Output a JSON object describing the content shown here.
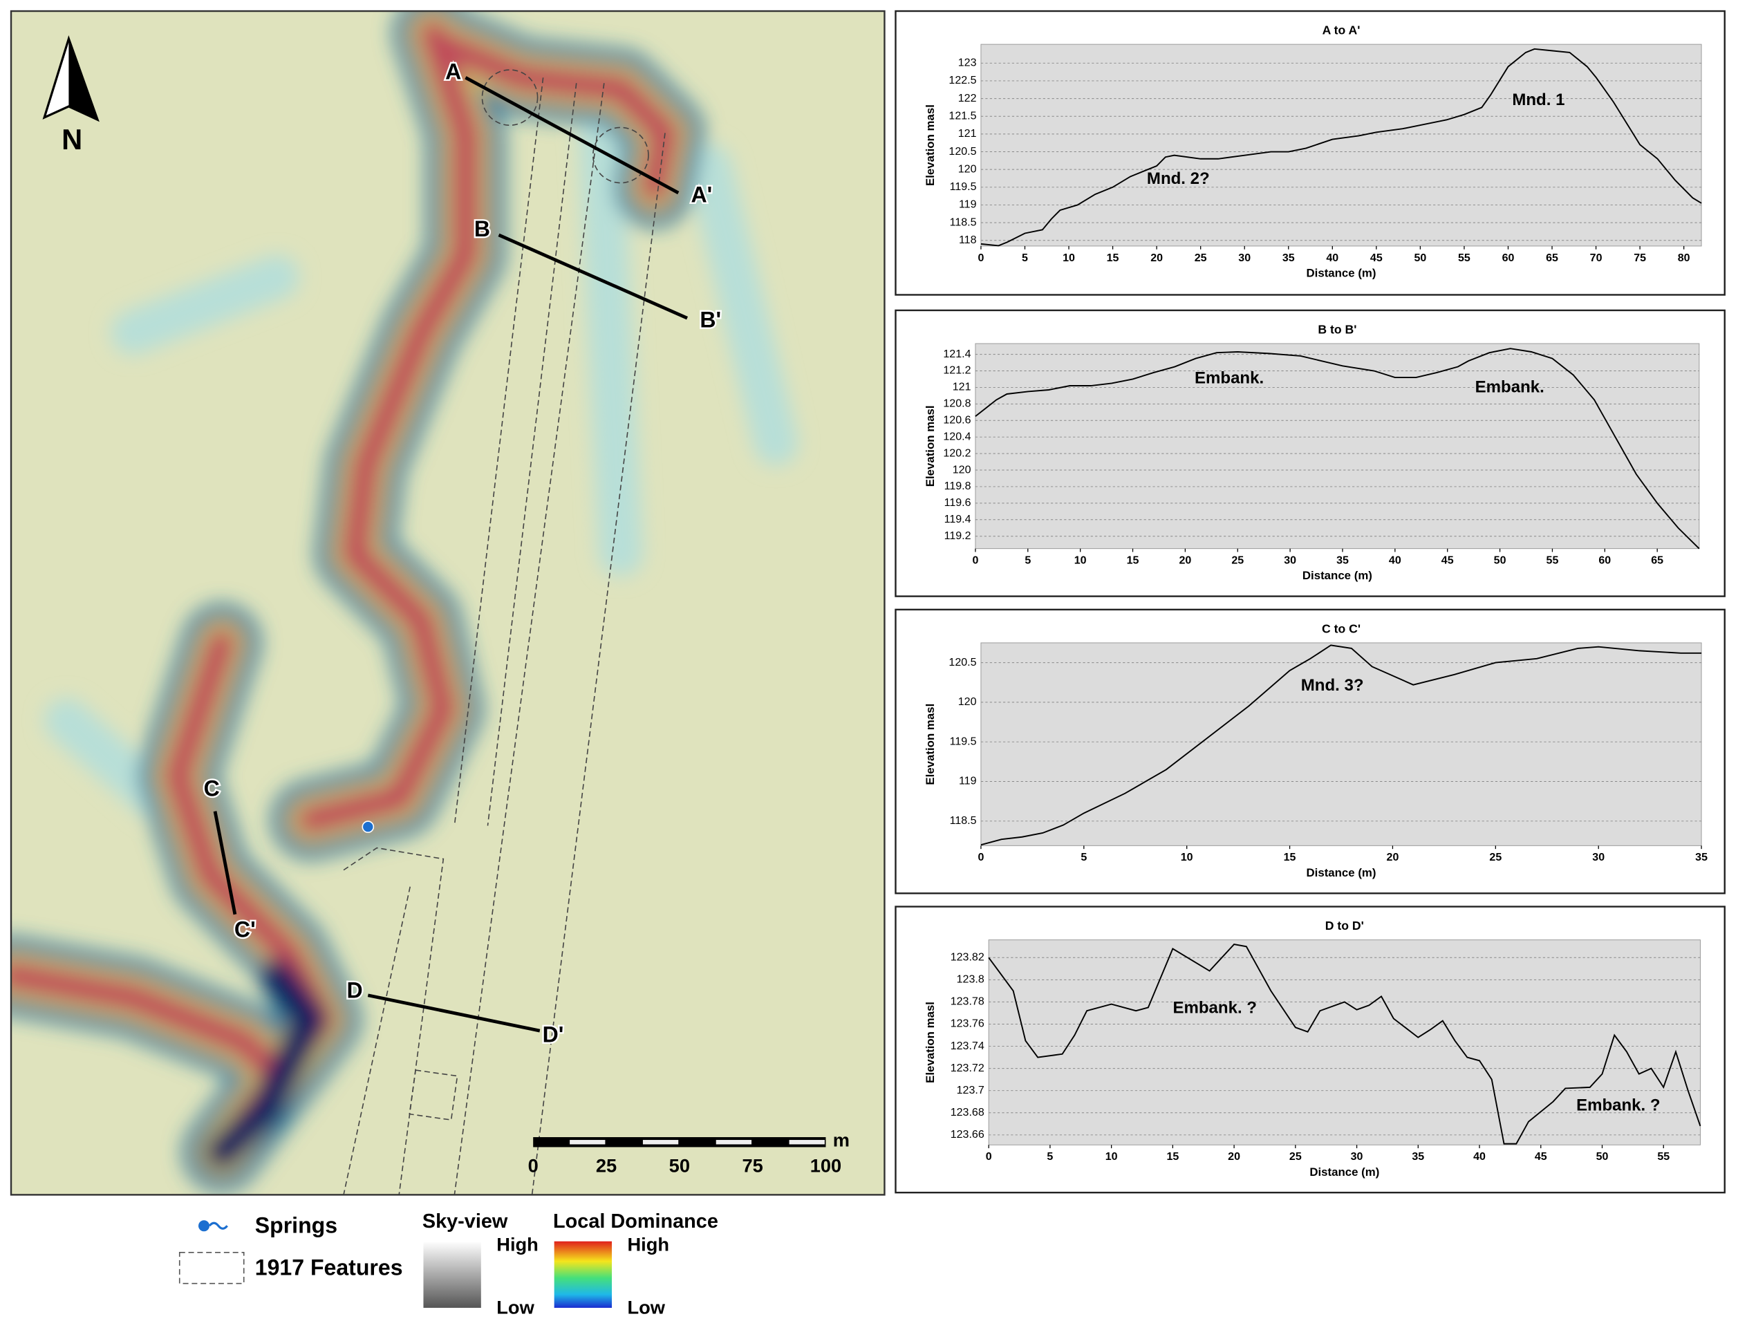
{
  "map": {
    "north": "N",
    "sections": [
      {
        "start": "A",
        "end": "A'"
      },
      {
        "start": "B",
        "end": "B'"
      },
      {
        "start": "C",
        "end": "C'"
      },
      {
        "start": "D",
        "end": "D'"
      }
    ],
    "scale_bar": {
      "ticks": [
        0,
        25,
        50,
        75,
        100
      ],
      "unit": "m"
    },
    "legend": {
      "springs": "Springs",
      "features": "1917 Features",
      "sky_view": {
        "title": "Sky-view",
        "high": "High",
        "low": "Low"
      },
      "local_dominance": {
        "title": "Local Dominance",
        "high": "High",
        "low": "Low"
      }
    }
  },
  "chart_data": [
    {
      "type": "line",
      "title": "A to A'",
      "x_label": "Distance (m)",
      "y_label": "Elevation masl",
      "x": [
        0,
        2,
        3,
        5,
        7,
        8,
        9,
        11,
        13,
        15,
        17,
        20,
        21,
        22,
        25,
        27,
        30,
        33,
        35,
        37,
        40,
        43,
        45,
        48,
        50,
        53,
        55,
        57,
        58,
        60,
        62,
        63,
        65,
        67,
        69,
        70,
        72,
        74,
        75,
        77,
        79,
        81,
        82
      ],
      "values": [
        117.9,
        117.85,
        117.95,
        118.2,
        118.3,
        118.6,
        118.85,
        119,
        119.3,
        119.5,
        119.8,
        120.1,
        120.35,
        120.4,
        120.3,
        120.3,
        120.4,
        120.5,
        120.5,
        120.6,
        120.85,
        120.95,
        121.05,
        121.15,
        121.25,
        121.4,
        121.55,
        121.75,
        122.1,
        122.9,
        123.3,
        123.4,
        123.35,
        123.3,
        122.9,
        122.6,
        121.9,
        121.1,
        120.7,
        120.3,
        119.7,
        119.2,
        119.05
      ],
      "xlim": [
        0,
        82
      ],
      "ylim": [
        117.84,
        123.53
      ],
      "xticks": [
        0,
        5,
        10,
        15,
        20,
        25,
        30,
        35,
        40,
        45,
        50,
        55,
        60,
        65,
        70,
        75,
        80
      ],
      "yticks": [
        118,
        118.5,
        119,
        119.5,
        120,
        120.5,
        121,
        121.5,
        122,
        122.5,
        123
      ],
      "annotations": [
        "Mnd. 1",
        "Mnd. 2?"
      ]
    },
    {
      "type": "line",
      "title": "B to B'",
      "x_label": "Distance (m)",
      "y_label": "Elevation masl",
      "x": [
        0,
        1,
        2,
        3,
        5,
        7,
        9,
        11,
        13,
        15,
        17,
        19,
        21,
        23,
        25,
        28,
        31,
        33,
        35,
        38,
        40,
        42,
        44,
        46,
        47,
        49,
        51,
        53,
        55,
        57,
        59,
        61,
        63,
        65,
        67,
        69
      ],
      "values": [
        120.65,
        120.75,
        120.85,
        120.92,
        120.95,
        120.97,
        121.02,
        121.02,
        121.05,
        121.1,
        121.18,
        121.25,
        121.35,
        121.42,
        121.43,
        121.41,
        121.38,
        121.32,
        121.26,
        121.2,
        121.12,
        121.12,
        121.18,
        121.25,
        121.32,
        121.42,
        121.47,
        121.43,
        121.35,
        121.15,
        120.85,
        120.4,
        119.95,
        119.6,
        119.3,
        119.05
      ],
      "xlim": [
        0,
        69
      ],
      "ylim": [
        119.05,
        121.53
      ],
      "xticks": [
        0,
        5,
        10,
        15,
        20,
        25,
        30,
        35,
        40,
        45,
        50,
        55,
        60,
        65
      ],
      "yticks": [
        119.2,
        119.4,
        119.6,
        119.8,
        120,
        120.2,
        120.4,
        120.6,
        120.8,
        121,
        121.2,
        121.4
      ],
      "annotations": [
        "Embank.",
        "Embank."
      ]
    },
    {
      "type": "line",
      "title": "C to C'",
      "x_label": "Distance (m)",
      "y_label": "Elevation masl",
      "x": [
        0,
        1,
        2,
        3,
        4,
        5,
        7,
        9,
        11,
        13,
        15,
        16,
        17,
        18,
        19,
        21,
        23,
        25,
        27,
        29,
        30,
        32,
        34,
        35
      ],
      "values": [
        118.2,
        118.27,
        118.3,
        118.35,
        118.45,
        118.6,
        118.85,
        119.15,
        119.55,
        119.95,
        120.4,
        120.55,
        120.72,
        120.68,
        120.45,
        120.22,
        120.35,
        120.5,
        120.55,
        120.68,
        120.7,
        120.65,
        120.62,
        120.62
      ],
      "xlim": [
        0,
        35
      ],
      "ylim": [
        118.19,
        120.75
      ],
      "xticks": [
        0,
        5,
        10,
        15,
        20,
        25,
        30,
        35
      ],
      "yticks": [
        118.5,
        119,
        119.5,
        120,
        120.5
      ],
      "annotations": [
        "Mnd. 3?"
      ]
    },
    {
      "type": "line",
      "title": "D to D'",
      "x_label": "Distance (m)",
      "y_label": "Elevation masl",
      "x": [
        0,
        2,
        3,
        4,
        6,
        7,
        8,
        10,
        12,
        13,
        15,
        18,
        20,
        21,
        23,
        25,
        26,
        27,
        29,
        30,
        31,
        32,
        33,
        35,
        36,
        37,
        38,
        39,
        40,
        41,
        42,
        43,
        44,
        46,
        47,
        49,
        50,
        51,
        52,
        53,
        54,
        55,
        56,
        57,
        58
      ],
      "values": [
        123.82,
        123.79,
        123.745,
        123.73,
        123.733,
        123.75,
        123.772,
        123.778,
        123.772,
        123.775,
        123.828,
        123.808,
        123.832,
        123.83,
        123.79,
        123.757,
        123.753,
        123.772,
        123.78,
        123.773,
        123.777,
        123.785,
        123.765,
        123.748,
        123.755,
        123.763,
        123.745,
        123.73,
        123.727,
        123.71,
        123.652,
        123.652,
        123.672,
        123.69,
        123.702,
        123.703,
        123.715,
        123.75,
        123.735,
        123.715,
        123.72,
        123.703,
        123.735,
        123.7,
        123.668
      ],
      "xlim": [
        0,
        58
      ],
      "ylim": [
        123.651,
        123.836
      ],
      "xticks": [
        0,
        5,
        10,
        15,
        20,
        25,
        30,
        35,
        40,
        45,
        50,
        55
      ],
      "yticks": [
        123.66,
        123.68,
        123.7,
        123.72,
        123.74,
        123.76,
        123.78,
        123.8,
        123.82
      ],
      "annotations": [
        "Embank. ?",
        "Embank. ?"
      ]
    }
  ]
}
